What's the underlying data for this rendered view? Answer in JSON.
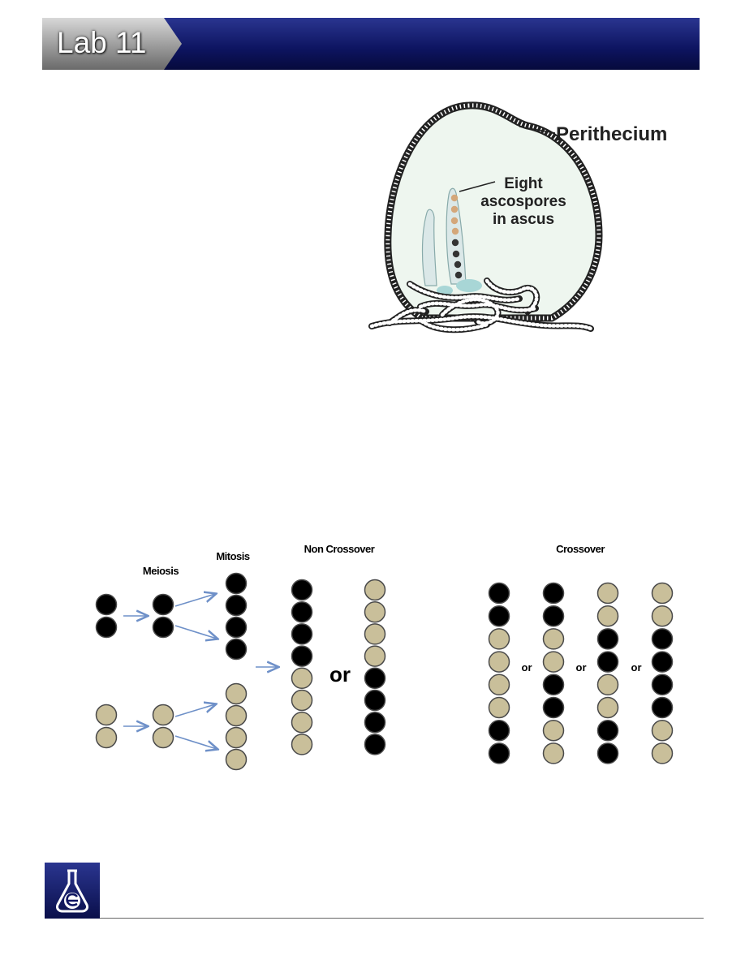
{
  "header": {
    "title": "Lab 11"
  },
  "perithecium_figure": {
    "label_perithecium": "Perithecium",
    "label_ascospores_lines": [
      "Eight",
      "ascospores",
      "in ascus"
    ]
  },
  "meiosis_diagram": {
    "label_meiosis": "Meiosis",
    "label_mitosis": "Mitosis",
    "label_non_crossover": "Non Crossover",
    "label_crossover": "Crossover",
    "or_big": "or",
    "or_small": [
      "or",
      "or",
      "or"
    ],
    "colors": {
      "black": "#000000",
      "tan": "#c9bf9a",
      "arrow": "#6e90c8"
    },
    "non_crossover_orders": [
      [
        "black",
        "black",
        "black",
        "black",
        "tan",
        "tan",
        "tan",
        "tan"
      ],
      [
        "tan",
        "tan",
        "tan",
        "tan",
        "black",
        "black",
        "black",
        "black"
      ]
    ],
    "crossover_orders": [
      [
        "black",
        "black",
        "tan",
        "tan",
        "tan",
        "tan",
        "black",
        "black"
      ],
      [
        "black",
        "black",
        "tan",
        "tan",
        "black",
        "black",
        "tan",
        "tan"
      ],
      [
        "tan",
        "tan",
        "black",
        "black",
        "tan",
        "tan",
        "black",
        "black"
      ],
      [
        "tan",
        "tan",
        "black",
        "black",
        "black",
        "black",
        "tan",
        "tan"
      ]
    ]
  }
}
